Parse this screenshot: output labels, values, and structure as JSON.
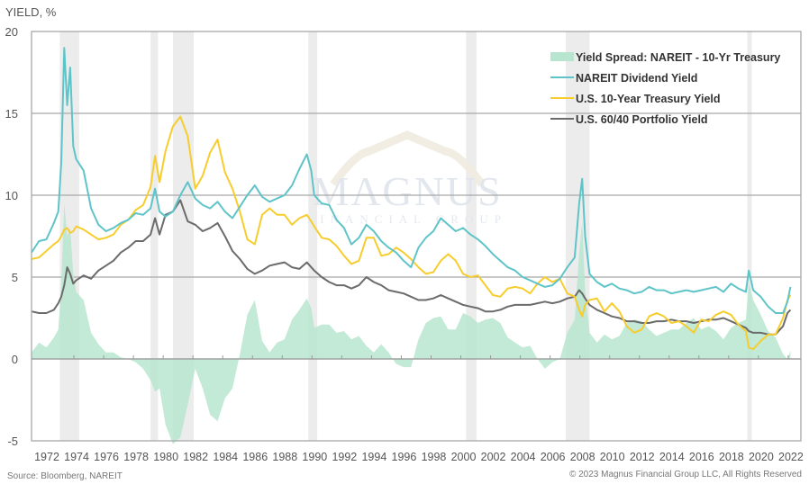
{
  "chart_data": {
    "type": "line",
    "ylabel": "YIELD, %",
    "ylim": [
      -5,
      20
    ],
    "yticks": [
      "20",
      "15",
      "10",
      "5",
      "0",
      "-5"
    ],
    "ytick_values": [
      20,
      15,
      10,
      5,
      0,
      -5
    ],
    "xlim": [
      1972,
      2023.7
    ],
    "xticks": [
      "1972",
      "1974",
      "1976",
      "1978",
      "1980",
      "1982",
      "1984",
      "1986",
      "1988",
      "1990",
      "1992",
      "1994",
      "1996",
      "1998",
      "2000",
      "2002",
      "2004",
      "2006",
      "2008",
      "2010",
      "2012",
      "2014",
      "2016",
      "2018",
      "2020",
      "2022"
    ],
    "grid": true,
    "legend_position": "top-right",
    "legend": [
      {
        "name": "Yield Spread: NAREIT - 10-Yr Treasury",
        "kind": "area",
        "color": "#b8e5d0"
      },
      {
        "name": "NAREIT Dividend Yield",
        "kind": "line",
        "color": "#5fc4c8"
      },
      {
        "name": "U.S. 10-Year Treasury Yield",
        "kind": "line",
        "color": "#f7cd2e"
      },
      {
        "name": "U.S. 60/40  Portfolio Yield",
        "kind": "line",
        "color": "#6b6b6b"
      }
    ],
    "recessions": [
      [
        1973.9,
        1975.2
      ],
      [
        1980.0,
        1980.5
      ],
      [
        1981.5,
        1982.9
      ],
      [
        1990.6,
        1991.2
      ],
      [
        2001.2,
        2001.9
      ],
      [
        2007.9,
        2009.5
      ],
      [
        2020.1,
        2020.4
      ]
    ],
    "x": [
      1972.0,
      1972.5,
      1973.0,
      1973.5,
      1973.8,
      1974.0,
      1974.2,
      1974.4,
      1974.6,
      1974.8,
      1975.0,
      1975.5,
      1976.0,
      1976.5,
      1977.0,
      1977.5,
      1978.0,
      1978.5,
      1979.0,
      1979.5,
      1980.0,
      1980.3,
      1980.6,
      1981.0,
      1981.5,
      1982.0,
      1982.5,
      1983.0,
      1983.5,
      1984.0,
      1984.5,
      1985.0,
      1985.5,
      1986.0,
      1986.5,
      1987.0,
      1987.5,
      1988.0,
      1988.5,
      1989.0,
      1989.5,
      1990.0,
      1990.5,
      1990.8,
      1991.0,
      1991.5,
      1992.0,
      1992.5,
      1993.0,
      1993.5,
      1994.0,
      1994.5,
      1995.0,
      1995.5,
      1996.0,
      1996.5,
      1997.0,
      1997.5,
      1998.0,
      1998.5,
      1999.0,
      1999.5,
      2000.0,
      2000.5,
      2001.0,
      2001.5,
      2002.0,
      2002.5,
      2003.0,
      2003.5,
      2004.0,
      2004.5,
      2005.0,
      2005.5,
      2006.0,
      2006.5,
      2007.0,
      2007.5,
      2008.0,
      2008.5,
      2008.8,
      2009.0,
      2009.2,
      2009.5,
      2010.0,
      2010.5,
      2011.0,
      2011.5,
      2012.0,
      2012.5,
      2013.0,
      2013.5,
      2014.0,
      2014.5,
      2015.0,
      2015.5,
      2016.0,
      2016.5,
      2017.0,
      2017.5,
      2018.0,
      2018.5,
      2019.0,
      2019.5,
      2020.0,
      2020.2,
      2020.5,
      2021.0,
      2021.5,
      2022.0,
      2022.5,
      2022.8,
      2023.0
    ],
    "series": [
      {
        "name": "NAREIT Dividend Yield",
        "values": [
          6.5,
          7.2,
          7.3,
          8.3,
          9.0,
          12.0,
          19.0,
          15.5,
          17.8,
          13.0,
          12.2,
          11.5,
          9.2,
          8.2,
          7.8,
          8.0,
          8.3,
          8.5,
          8.9,
          8.8,
          9.2,
          10.4,
          9.0,
          8.7,
          9.0,
          10.0,
          10.8,
          9.8,
          9.4,
          9.2,
          9.6,
          9.0,
          8.6,
          9.3,
          10.0,
          10.6,
          9.9,
          9.6,
          9.8,
          10.0,
          10.6,
          11.6,
          12.5,
          11.5,
          10.0,
          9.5,
          9.4,
          8.5,
          8.0,
          7.0,
          7.4,
          8.2,
          7.8,
          7.2,
          6.8,
          6.5,
          6.0,
          5.6,
          6.8,
          7.4,
          7.8,
          8.6,
          8.2,
          7.8,
          8.0,
          7.6,
          7.3,
          6.9,
          6.4,
          6.0,
          5.6,
          5.4,
          5.0,
          4.8,
          4.6,
          4.4,
          4.5,
          4.9,
          5.6,
          6.2,
          9.5,
          11.0,
          7.5,
          5.2,
          4.7,
          4.4,
          4.6,
          4.3,
          4.2,
          4.0,
          4.1,
          4.4,
          4.2,
          4.2,
          4.0,
          4.1,
          4.2,
          4.1,
          4.2,
          4.3,
          4.4,
          4.1,
          4.6,
          4.3,
          4.1,
          5.4,
          4.2,
          3.8,
          3.2,
          2.8,
          2.8,
          3.5,
          4.4
        ]
      },
      {
        "name": "U.S. 10-Year Treasury Yield",
        "values": [
          6.1,
          6.2,
          6.6,
          7.0,
          7.2,
          7.5,
          7.9,
          8.0,
          7.7,
          7.8,
          8.1,
          7.9,
          7.6,
          7.3,
          7.4,
          7.6,
          8.2,
          8.5,
          9.1,
          9.4,
          10.5,
          12.4,
          10.8,
          12.7,
          14.2,
          14.8,
          13.6,
          10.4,
          11.2,
          12.6,
          13.4,
          11.4,
          10.4,
          9.0,
          7.3,
          7.0,
          8.8,
          9.2,
          8.8,
          8.8,
          8.2,
          8.6,
          8.8,
          8.4,
          8.1,
          7.4,
          7.3,
          6.9,
          6.3,
          5.8,
          6.0,
          7.4,
          7.4,
          6.3,
          6.4,
          6.8,
          6.5,
          6.1,
          5.6,
          5.2,
          5.3,
          6.0,
          6.4,
          6.0,
          5.2,
          5.0,
          5.1,
          4.5,
          3.9,
          3.8,
          4.3,
          4.4,
          4.3,
          4.0,
          4.6,
          5.0,
          4.7,
          4.9,
          4.0,
          3.8,
          3.0,
          2.6,
          3.3,
          3.6,
          3.7,
          2.9,
          3.4,
          2.9,
          2.0,
          1.6,
          1.8,
          2.6,
          2.8,
          2.6,
          2.2,
          2.3,
          2.0,
          1.6,
          2.4,
          2.3,
          2.7,
          2.9,
          2.7,
          2.1,
          1.7,
          0.7,
          0.6,
          1.1,
          1.5,
          1.5,
          2.5,
          3.6,
          3.9
        ]
      },
      {
        "name": "U.S. 60/40  Portfolio Yield",
        "values": [
          2.9,
          2.8,
          2.8,
          3.0,
          3.4,
          3.8,
          4.5,
          5.6,
          5.2,
          4.6,
          4.8,
          5.1,
          4.9,
          5.4,
          5.7,
          6.0,
          6.5,
          6.8,
          7.2,
          7.2,
          7.6,
          8.6,
          7.6,
          8.8,
          9.0,
          9.7,
          8.4,
          8.2,
          7.8,
          8.0,
          8.3,
          7.5,
          6.6,
          6.1,
          5.5,
          5.2,
          5.4,
          5.7,
          5.8,
          5.9,
          5.6,
          5.5,
          5.9,
          5.6,
          5.4,
          5.0,
          4.7,
          4.5,
          4.5,
          4.3,
          4.5,
          5.0,
          4.7,
          4.5,
          4.2,
          4.1,
          4.0,
          3.8,
          3.6,
          3.6,
          3.7,
          3.9,
          3.7,
          3.5,
          3.3,
          3.2,
          3.1,
          2.9,
          2.9,
          3.0,
          3.2,
          3.3,
          3.3,
          3.3,
          3.4,
          3.5,
          3.4,
          3.5,
          3.7,
          3.8,
          4.2,
          4.0,
          3.7,
          3.3,
          3.0,
          2.8,
          2.6,
          2.5,
          2.3,
          2.3,
          2.2,
          2.2,
          2.3,
          2.3,
          2.4,
          2.3,
          2.3,
          2.2,
          2.3,
          2.4,
          2.4,
          2.5,
          2.3,
          2.1,
          1.9,
          1.7,
          1.6,
          1.6,
          1.5,
          1.5,
          2.0,
          2.8,
          3.0
        ]
      },
      {
        "name": "Yield Spread: NAREIT - 10-Yr Treasury",
        "values": [
          0.4,
          1.0,
          0.7,
          1.3,
          1.8,
          4.5,
          9.5,
          7.5,
          8.0,
          5.2,
          4.1,
          3.6,
          1.6,
          0.9,
          0.4,
          0.4,
          0.1,
          0.0,
          -0.2,
          -0.6,
          -1.3,
          -2.0,
          -1.8,
          -4.0,
          -5.2,
          -4.8,
          -2.8,
          -0.6,
          -1.8,
          -3.4,
          -3.8,
          -2.4,
          -1.8,
          0.3,
          2.7,
          3.6,
          1.1,
          0.4,
          1.0,
          1.2,
          2.4,
          3.0,
          3.7,
          3.1,
          1.9,
          2.1,
          2.1,
          1.6,
          1.7,
          1.2,
          1.4,
          0.8,
          0.4,
          0.9,
          0.4,
          -0.3,
          -0.5,
          -0.5,
          1.2,
          2.2,
          2.5,
          2.6,
          1.8,
          1.8,
          2.8,
          2.6,
          2.2,
          2.4,
          2.5,
          2.2,
          1.3,
          1.0,
          0.7,
          0.8,
          0.0,
          -0.6,
          -0.2,
          0.0,
          1.6,
          2.4,
          6.5,
          8.4,
          4.2,
          1.6,
          1.0,
          1.5,
          1.2,
          1.4,
          2.2,
          2.4,
          2.3,
          1.8,
          1.4,
          1.6,
          1.8,
          1.8,
          2.2,
          2.5,
          1.8,
          2.0,
          1.7,
          1.2,
          1.9,
          2.2,
          2.4,
          4.7,
          3.6,
          2.7,
          1.7,
          1.3,
          0.3,
          0.0,
          0.5
        ]
      }
    ]
  },
  "footer": {
    "source": "Source: Bloomberg, NAREIT",
    "copyright": "© 2023 Magnus Financial Group LLC, All Rights Reserved"
  },
  "watermark": {
    "brand": "MAGNUS",
    "subtitle": "FINANCIAL GROUP"
  }
}
